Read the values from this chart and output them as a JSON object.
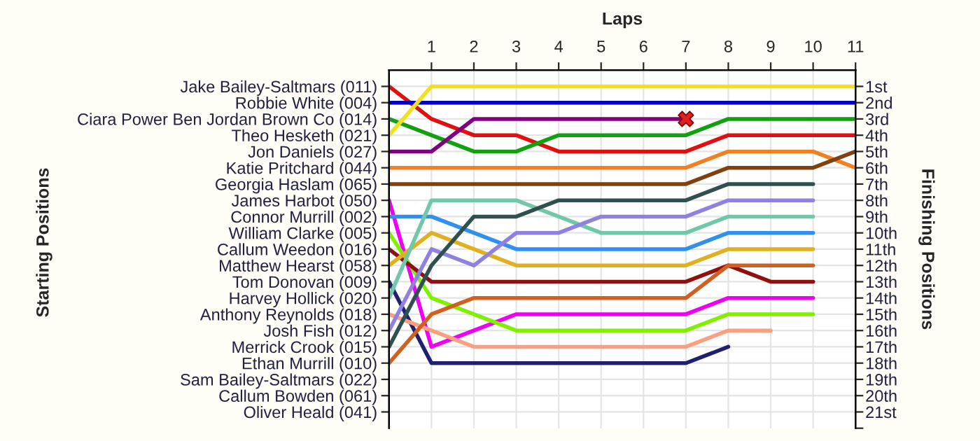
{
  "chart_data": {
    "type": "line",
    "xlabel": "Laps",
    "ylabel": "Finishing Positions",
    "annotations": [
      "Starting Positions"
    ],
    "xlim": [
      0,
      11
    ],
    "xticks": [
      1,
      2,
      3,
      4,
      5,
      6,
      7,
      8,
      9,
      10,
      11
    ],
    "ylim": [
      22,
      0
    ],
    "y_categories": [
      "Jake Bailey-Saltmars (011)",
      "Robbie White (004)",
      "Ciara Power Ben Jordan Brown Co (014)",
      "Theo Hesketh (021)",
      "Jon Daniels (027)",
      "Katie Pritchard (044)",
      "Georgia Haslam (065)",
      "James Harbot (050)",
      "Connor Murrill (002)",
      "William Clarke (005)",
      "Callum Weedon (016)",
      "Matthew Hearst (058)",
      "Tom Donovan (009)",
      "Harvey Hollick (020)",
      "Anthony Reynolds (018)",
      "Josh Fish (012)",
      "Merrick Crook (015)",
      "Ethan Murrill (010)",
      "Sam Bailey-Saltmars (022)",
      "Callum Bowden (061)",
      "Oliver Heald (041)"
    ],
    "yticks": [
      {
        "value": 1,
        "label": "1st"
      },
      {
        "value": 2,
        "label": "2nd"
      },
      {
        "value": 3,
        "label": "3rd"
      },
      {
        "value": 4,
        "label": "4th"
      },
      {
        "value": 5,
        "label": "5th"
      },
      {
        "value": 6,
        "label": "6th"
      },
      {
        "value": 7,
        "label": "7th"
      },
      {
        "value": 8,
        "label": "8th"
      },
      {
        "value": 9,
        "label": "9th"
      },
      {
        "value": 10,
        "label": "10th"
      },
      {
        "value": 11,
        "label": "11th"
      },
      {
        "value": 12,
        "label": "12th"
      },
      {
        "value": 13,
        "label": "13th"
      },
      {
        "value": 14,
        "label": "14th"
      },
      {
        "value": 15,
        "label": "15th"
      },
      {
        "value": 16,
        "label": "16th"
      },
      {
        "value": 17,
        "label": "17th"
      },
      {
        "value": 18,
        "label": "18th"
      },
      {
        "value": 19,
        "label": "19th"
      },
      {
        "value": 20,
        "label": "20th"
      },
      {
        "value": 21,
        "label": "21st"
      },
      {
        "value": 22,
        "label": null
      }
    ],
    "grid": true,
    "series": [
      {
        "color": "#e01010",
        "x": [
          0,
          1,
          2,
          3,
          4,
          5,
          6,
          7,
          8,
          9,
          10,
          11
        ],
        "values": [
          1,
          3,
          4,
          4,
          5,
          5,
          5,
          5,
          4,
          4,
          4,
          4
        ]
      },
      {
        "color": "#0000c0",
        "x": [
          0,
          1,
          2,
          3,
          4,
          5,
          6,
          7,
          8,
          9,
          10,
          11
        ],
        "values": [
          2,
          2,
          2,
          2,
          2,
          2,
          2,
          2,
          2,
          2,
          2,
          2
        ]
      },
      {
        "color": "#10a010",
        "x": [
          0,
          1,
          2,
          3,
          4,
          5,
          6,
          7,
          8,
          9,
          10,
          11
        ],
        "values": [
          3,
          4,
          5,
          5,
          4,
          4,
          4,
          4,
          3,
          3,
          3,
          3
        ]
      },
      {
        "color": "#f0e020",
        "x": [
          0,
          1,
          2,
          3,
          4,
          5,
          6,
          7,
          8,
          9,
          10,
          11
        ],
        "values": [
          4,
          1,
          1,
          1,
          1,
          1,
          1,
          1,
          1,
          1,
          1,
          1
        ]
      },
      {
        "color": "#800080",
        "x": [
          0,
          1,
          2,
          3,
          4,
          5,
          6,
          7
        ],
        "values": [
          5,
          5,
          3,
          3,
          3,
          3,
          3,
          3
        ]
      },
      {
        "color": "#f08020",
        "x": [
          0,
          1,
          2,
          3,
          4,
          5,
          6,
          7,
          8,
          9,
          10,
          11
        ],
        "values": [
          6,
          6,
          6,
          6,
          6,
          6,
          6,
          6,
          5,
          5,
          5,
          6
        ]
      },
      {
        "color": "#804010",
        "x": [
          0,
          1,
          2,
          3,
          4,
          5,
          6,
          7,
          8,
          9,
          10,
          11
        ],
        "values": [
          7,
          7,
          7,
          7,
          7,
          7,
          7,
          7,
          6,
          6,
          6,
          5
        ]
      },
      {
        "color": "#f000f0",
        "x": [
          0,
          1,
          2,
          3,
          4,
          5,
          6,
          7,
          8,
          9,
          10
        ],
        "values": [
          8,
          17,
          16,
          15,
          15,
          15,
          15,
          15,
          14,
          14,
          14
        ]
      },
      {
        "color": "#3090f0",
        "x": [
          0,
          1,
          2,
          3,
          4,
          5,
          6,
          7,
          8,
          9,
          10
        ],
        "values": [
          9,
          9,
          10,
          11,
          11,
          11,
          11,
          11,
          10,
          10,
          10
        ]
      },
      {
        "color": "#80f000",
        "x": [
          0,
          1,
          2,
          3,
          4,
          5,
          6,
          7,
          8,
          9,
          10
        ],
        "values": [
          10,
          14,
          15,
          16,
          16,
          16,
          16,
          16,
          15,
          15,
          15
        ]
      },
      {
        "color": "#901010",
        "x": [
          0,
          1,
          2,
          3,
          4,
          5,
          6,
          7,
          8,
          9,
          10
        ],
        "values": [
          11,
          13,
          13,
          13,
          13,
          13,
          13,
          13,
          12,
          13,
          13
        ]
      },
      {
        "color": "#e0b020",
        "x": [
          0,
          1,
          2,
          3,
          4,
          5,
          6,
          7,
          8,
          9,
          10
        ],
        "values": [
          12,
          10,
          11,
          12,
          12,
          12,
          12,
          12,
          11,
          11,
          11
        ]
      },
      {
        "color": "#202070",
        "x": [
          0,
          1,
          2,
          3,
          4,
          5,
          6,
          7,
          8
        ],
        "values": [
          13,
          18,
          18,
          18,
          18,
          18,
          18,
          18,
          17
        ]
      },
      {
        "color": "#70c8a8",
        "x": [
          0,
          1,
          2,
          3,
          4,
          5,
          6,
          7,
          8,
          9,
          10
        ],
        "values": [
          14,
          8,
          8,
          8,
          9,
          10,
          10,
          10,
          9,
          9,
          9
        ]
      },
      {
        "color": "#f8a080",
        "x": [
          0,
          1,
          2,
          3,
          4,
          5,
          6,
          7,
          8,
          9
        ],
        "values": [
          15,
          16,
          17,
          17,
          17,
          17,
          17,
          17,
          16,
          16
        ]
      },
      {
        "color": "#9080e0",
        "x": [
          0,
          1,
          2,
          3,
          4,
          5,
          6,
          7,
          8,
          9,
          10
        ],
        "values": [
          16,
          11,
          12,
          10,
          10,
          9,
          9,
          9,
          8,
          8,
          8
        ]
      },
      {
        "color": "#305050",
        "x": [
          0,
          1,
          2,
          3,
          4,
          5,
          6,
          7,
          8,
          9,
          10
        ],
        "values": [
          17,
          12,
          9,
          9,
          8,
          8,
          8,
          8,
          7,
          7,
          7
        ]
      },
      {
        "color": "#d06020",
        "x": [
          0,
          1,
          2,
          3,
          4,
          5,
          6,
          7,
          8,
          9,
          10
        ],
        "values": [
          18,
          15,
          14,
          14,
          14,
          14,
          14,
          14,
          12,
          12,
          12
        ]
      },
      {
        "type": "scatter",
        "marker": "cross",
        "color": "#e02020",
        "x": [
          7
        ],
        "values": [
          3
        ]
      }
    ]
  }
}
